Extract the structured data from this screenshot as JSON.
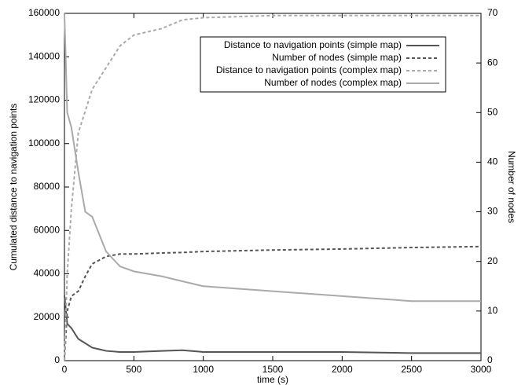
{
  "chart_data": {
    "type": "line",
    "xlabel": "time (s)",
    "ylabel": "Cumulated distance to navigation points",
    "y2label": "Number of nodes",
    "x": [
      0,
      20,
      50,
      100,
      150,
      200,
      300,
      400,
      500,
      700,
      850,
      1000,
      1500,
      2000,
      2500,
      3000
    ],
    "xlim": [
      0,
      3000
    ],
    "xticks": [
      0,
      500,
      1000,
      1500,
      2000,
      2500,
      3000
    ],
    "ylim": [
      0,
      160000
    ],
    "yticks": [
      0,
      20000,
      40000,
      60000,
      80000,
      100000,
      120000,
      140000,
      160000
    ],
    "y2lim": [
      0,
      70
    ],
    "y2ticks": [
      0,
      10,
      20,
      30,
      40,
      50,
      60,
      70
    ],
    "legend": "top-right",
    "series": [
      {
        "name": "Distance to navigation points (simple map)",
        "color": "#555555",
        "dashed": false,
        "axis": "y",
        "values": [
          30000,
          17000,
          15000,
          10000,
          8000,
          6000,
          4500,
          4000,
          4000,
          4500,
          4800,
          4000,
          4000,
          4000,
          3500,
          3500
        ]
      },
      {
        "name": "Number of nodes (simple map)",
        "color": "#555555",
        "dashed": true,
        "axis": "y2",
        "values": [
          0,
          10,
          13,
          14,
          17,
          19.5,
          21,
          21.5,
          21.5,
          21.7,
          21.8,
          22,
          22.3,
          22.5,
          22.8,
          23
        ]
      },
      {
        "name": "Distance to navigation points (complex map)",
        "color": "#aaaaaa",
        "dashed": true,
        "axis": "y",
        "values": [
          0,
          40000,
          70000,
          105000,
          115000,
          125000,
          135000,
          145000,
          150000,
          153000,
          157000,
          158000,
          159000,
          159000,
          159000,
          159000
        ]
      },
      {
        "name": "Number of nodes (complex map)",
        "color": "#aaaaaa",
        "dashed": false,
        "axis": "y2",
        "values": [
          70,
          50,
          47,
          38,
          30,
          29,
          22,
          19,
          18,
          17,
          16,
          15,
          14,
          13,
          12,
          12
        ]
      }
    ]
  }
}
